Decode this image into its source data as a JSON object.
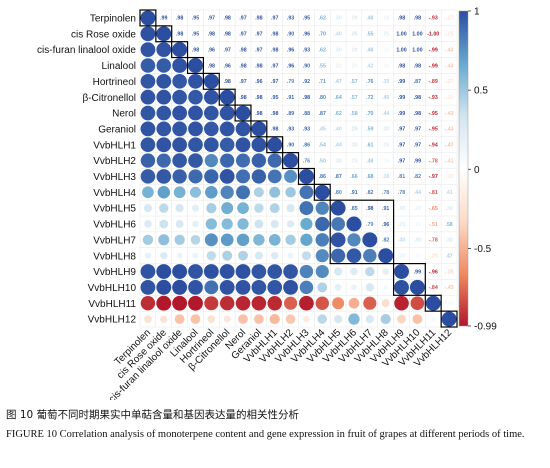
{
  "caption": {
    "zh": "图 10  葡萄不同时期果实中单萜含量和基因表达量的相关性分析",
    "en": "FIGURE 10  Correlation analysis of monoterpene content and gene expression in fruit of grapes at different periods of time."
  },
  "chart_data": {
    "type": "heatmap",
    "variables": [
      "Terpinolen",
      "cis Rose oxide",
      "cis-furan linalool oxide",
      "Linalool",
      "Hortrineol",
      "β-Citronellol",
      "Nerol",
      "Geraniol",
      "VvbHLH1",
      "VvbHLH2",
      "VvbHLH3",
      "VvbHLH4",
      "VvbHLH5",
      "VvbHLH6",
      "VvbHLH7",
      "VvbHLH8",
      "VvbHLH9",
      "VvbHLH10",
      "VvbHLH11",
      "VvbHLH12"
    ],
    "color_scale": {
      "min": -0.99,
      "max": 1,
      "ticks": [
        1,
        0.5,
        0,
        -0.5,
        -0.99
      ],
      "colors": [
        "#b2182b",
        "#ef8a62",
        "#fddbc7",
        "#ffffff",
        "#d1e5f0",
        "#67a9cf",
        "#2c4ea0"
      ]
    },
    "matrix": [
      [
        1,
        0.99,
        0.98,
        0.95,
        0.97,
        0.98,
        0.97,
        0.98,
        0.97,
        0.93,
        0.95,
        0.62,
        0.3,
        0.26,
        0.48,
        0.18,
        0.98,
        0.98,
        -0.93,
        -0.27
      ],
      [
        0.99,
        1,
        0.98,
        0.95,
        0.98,
        0.98,
        0.97,
        0.97,
        0.98,
        0.9,
        0.96,
        0.7,
        0.4,
        0.35,
        0.55,
        0.25,
        1.0,
        1.0,
        -1.0,
        -0.25
      ],
      [
        0.98,
        0.98,
        1,
        0.98,
        0.96,
        0.97,
        0.98,
        0.97,
        0.98,
        0.96,
        0.93,
        0.62,
        0.3,
        0.28,
        0.48,
        0.15,
        1.0,
        1.0,
        -0.99,
        -0.43
      ],
      [
        0.95,
        0.95,
        0.98,
        1,
        0.98,
        0.96,
        0.98,
        0.98,
        0.97,
        0.96,
        0.9,
        0.55,
        0.22,
        0.2,
        0.42,
        0.15,
        0.98,
        0.98,
        -0.99,
        -0.43
      ],
      [
        0.97,
        0.98,
        0.96,
        0.98,
        1,
        0.98,
        0.97,
        0.96,
        0.97,
        0.79,
        0.92,
        0.71,
        0.47,
        0.57,
        0.76,
        0.39,
        0.99,
        0.87,
        -0.89,
        -0.27
      ],
      [
        0.98,
        0.98,
        0.97,
        0.96,
        0.98,
        1,
        0.98,
        0.98,
        0.95,
        0.91,
        0.98,
        0.8,
        0.64,
        0.57,
        0.72,
        0.45,
        0.99,
        0.98,
        -0.93,
        -0.22
      ],
      [
        0.97,
        0.97,
        0.98,
        0.98,
        0.97,
        0.98,
        1,
        0.98,
        0.98,
        0.89,
        0.88,
        0.87,
        0.62,
        0.58,
        0.7,
        0.44,
        0.99,
        0.98,
        -0.95,
        -0.43
      ],
      [
        0.98,
        0.97,
        0.97,
        0.98,
        0.96,
        0.98,
        0.98,
        1,
        0.98,
        0.93,
        0.93,
        0.45,
        0.4,
        0.35,
        0.59,
        0.3,
        0.97,
        0.97,
        -0.95,
        -0.43
      ],
      [
        0.97,
        0.98,
        0.98,
        0.97,
        0.97,
        0.95,
        0.98,
        0.98,
        1,
        0.9,
        0.86,
        0.54,
        0.44,
        0.3,
        0.61,
        0.25,
        0.97,
        0.97,
        -0.94,
        -0.47
      ],
      [
        0.93,
        0.9,
        0.96,
        0.96,
        0.79,
        0.91,
        0.89,
        0.93,
        0.9,
        1,
        0.76,
        0.5,
        0.3,
        0.25,
        0.48,
        0.15,
        0.97,
        0.99,
        -0.78,
        -0.41
      ],
      [
        0.95,
        0.96,
        0.93,
        0.9,
        0.92,
        0.98,
        0.88,
        0.93,
        0.86,
        0.76,
        1,
        0.86,
        0.87,
        0.66,
        0.68,
        0.38,
        0.81,
        0.82,
        -0.97,
        -0.2
      ],
      [
        0.62,
        0.7,
        0.62,
        0.55,
        0.71,
        0.8,
        0.87,
        0.45,
        0.54,
        0.5,
        0.86,
        1,
        0.8,
        0.91,
        0.82,
        0.78,
        0.78,
        0.44,
        -0.81,
        0.41
      ],
      [
        0.3,
        0.4,
        0.3,
        0.22,
        0.47,
        0.64,
        0.62,
        0.4,
        0.44,
        0.3,
        0.87,
        0.8,
        1,
        0.85,
        0.98,
        0.91,
        0.3,
        0.2,
        -0.65,
        0.3
      ],
      [
        0.26,
        0.35,
        0.28,
        0.2,
        0.57,
        0.57,
        0.58,
        0.35,
        0.3,
        0.25,
        0.66,
        0.91,
        0.85,
        1,
        0.79,
        0.96,
        0.25,
        0.15,
        -0.51,
        0.58
      ],
      [
        0.48,
        0.55,
        0.48,
        0.42,
        0.76,
        0.72,
        0.7,
        0.59,
        0.61,
        0.48,
        0.68,
        0.82,
        0.98,
        0.79,
        1,
        0.82,
        0.4,
        0.3,
        -0.78,
        0.3
      ],
      [
        0.18,
        0.25,
        0.15,
        0.15,
        0.39,
        0.45,
        0.44,
        0.3,
        0.25,
        0.15,
        0.38,
        0.78,
        0.91,
        0.96,
        0.82,
        1,
        0.2,
        0.1,
        -0.29,
        0.47
      ],
      [
        0.98,
        1.0,
        1.0,
        0.98,
        0.99,
        0.99,
        0.99,
        0.97,
        0.97,
        0.97,
        0.81,
        0.78,
        0.3,
        0.25,
        0.4,
        0.2,
        1,
        0.99,
        -0.96,
        -0.35
      ],
      [
        0.98,
        1.0,
        1.0,
        0.98,
        0.87,
        0.98,
        0.98,
        0.97,
        0.97,
        0.99,
        0.82,
        0.44,
        0.2,
        0.15,
        0.3,
        0.1,
        0.99,
        1,
        -0.84,
        -0.43
      ],
      [
        -0.93,
        -1.0,
        -0.99,
        -0.99,
        -0.89,
        -0.93,
        -0.95,
        -0.95,
        -0.94,
        -0.78,
        -0.97,
        -0.81,
        -0.65,
        -0.51,
        -0.78,
        -0.29,
        -0.96,
        -0.84,
        1,
        0.1
      ],
      [
        -0.27,
        -0.25,
        -0.43,
        -0.43,
        -0.27,
        -0.22,
        -0.43,
        -0.43,
        -0.47,
        -0.41,
        -0.2,
        0.41,
        0.3,
        0.58,
        0.3,
        0.47,
        -0.35,
        -0.43,
        0.1,
        1
      ]
    ],
    "highlight_boxes": [
      [
        0,
        0
      ],
      [
        1,
        1
      ],
      [
        2,
        2
      ],
      [
        3,
        3
      ],
      [
        4,
        4
      ],
      [
        5,
        5
      ],
      [
        6,
        6
      ],
      [
        7,
        7
      ],
      [
        8,
        8
      ],
      [
        9,
        9
      ],
      [
        10,
        10
      ],
      [
        11,
        11
      ],
      [
        12,
        15
      ],
      [
        16,
        17
      ],
      [
        18,
        18
      ],
      [
        19,
        19
      ]
    ]
  }
}
